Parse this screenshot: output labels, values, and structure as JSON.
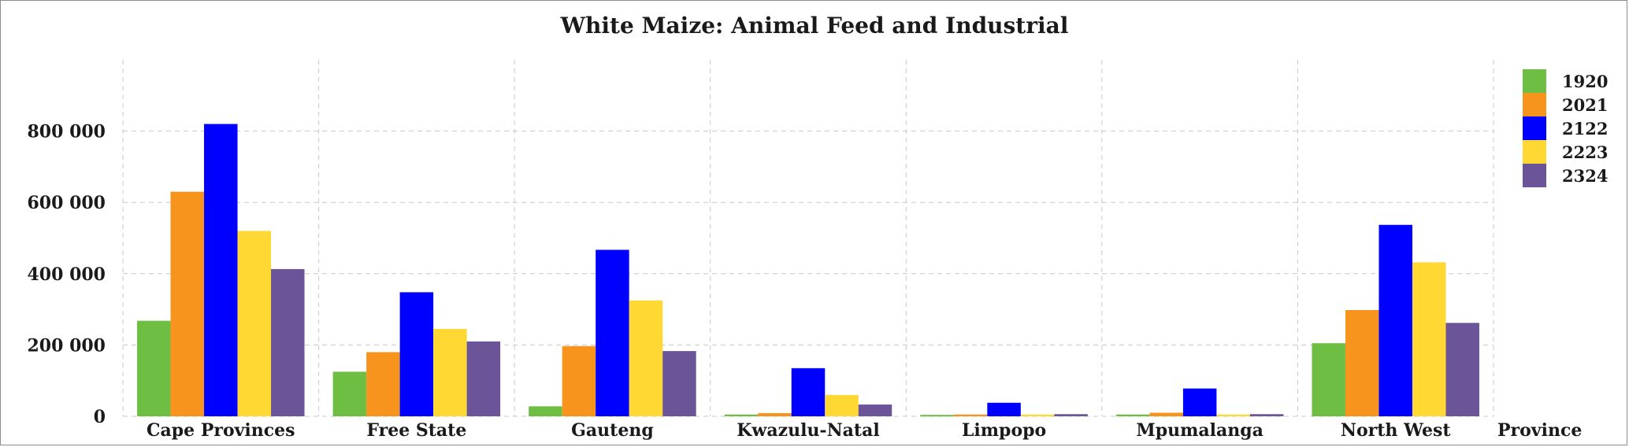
{
  "chart_data": {
    "type": "bar",
    "title": "White Maize: Animal Feed and Industrial",
    "xlabel": "Province",
    "ylabel": "",
    "ylim": [
      0,
      1000000
    ],
    "yticks": [
      0,
      200000,
      400000,
      600000,
      800000
    ],
    "ytick_labels": [
      "0",
      "200 000",
      "400 000",
      "600 000",
      "800 000"
    ],
    "grid": true,
    "legend_position": "top-right",
    "categories": [
      "Cape Provinces",
      "Free State",
      "Gauteng",
      "Kwazulu-Natal",
      "Limpopo",
      "Mpumalanga",
      "North West"
    ],
    "series": [
      {
        "name": "1920",
        "color": "#6fbe44",
        "values": [
          268000,
          125000,
          28000,
          5000,
          4000,
          5000,
          205000
        ]
      },
      {
        "name": "2021",
        "color": "#f7941d",
        "values": [
          630000,
          180000,
          197000,
          9000,
          5000,
          10000,
          298000
        ]
      },
      {
        "name": "2122",
        "color": "#0000ff",
        "values": [
          820000,
          348000,
          467000,
          135000,
          38000,
          78000,
          537000
        ]
      },
      {
        "name": "2223",
        "color": "#ffd833",
        "values": [
          520000,
          245000,
          325000,
          60000,
          5000,
          5000,
          432000
        ]
      },
      {
        "name": "2324",
        "color": "#6b5598",
        "values": [
          413000,
          210000,
          183000,
          33000,
          6000,
          6000,
          262000
        ]
      }
    ]
  }
}
